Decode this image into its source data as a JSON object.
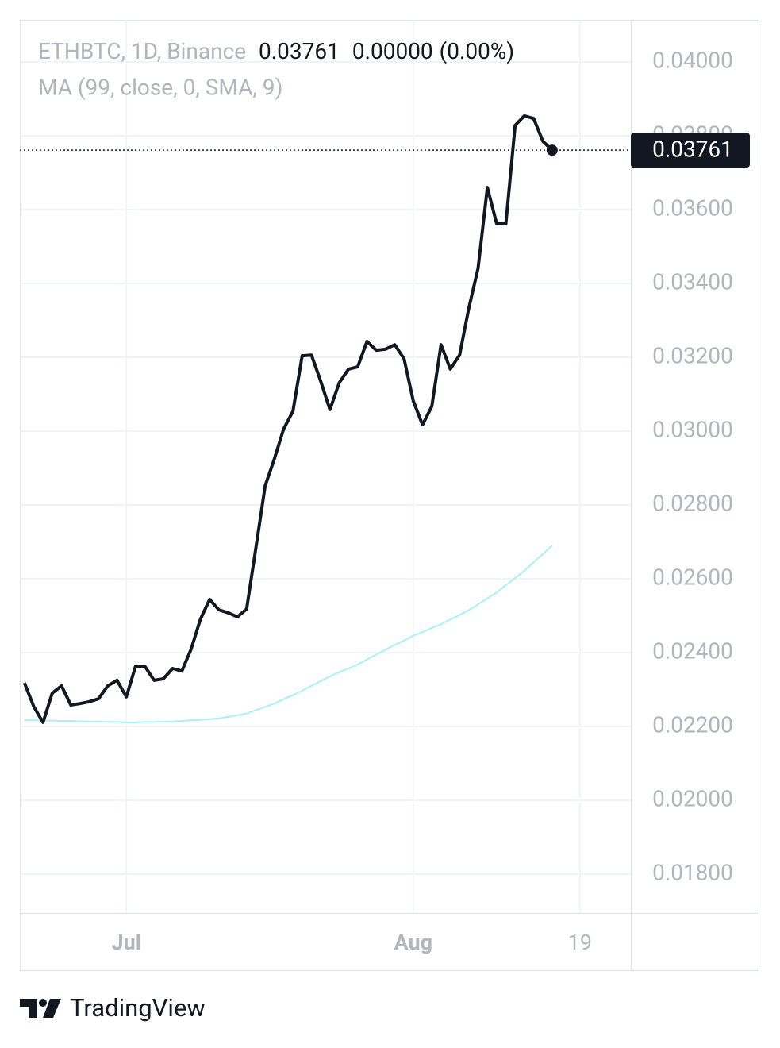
{
  "chart_data": {
    "type": "line",
    "categories": [
      null,
      null,
      null,
      null,
      null,
      null,
      null,
      null,
      null,
      null,
      null,
      "Jul",
      null,
      null,
      null,
      null,
      null,
      null,
      null,
      null,
      null,
      null,
      null,
      null,
      null,
      null,
      null,
      null,
      null,
      null,
      null,
      null,
      null,
      null,
      null,
      null,
      null,
      null,
      null,
      null,
      null,
      null,
      "Aug",
      null,
      null,
      null,
      null,
      null,
      null,
      null,
      null,
      null,
      null,
      null,
      null,
      null,
      null,
      null,
      null,
      null,
      "19",
      null,
      null,
      null,
      null,
      null
    ],
    "series": [
      {
        "name": "ETHBTC, 1D, Binance",
        "color": "#131722",
        "values": [
          0.02318,
          0.02254,
          0.02211,
          0.0229,
          0.0231,
          0.02258,
          0.02262,
          0.02267,
          0.02275,
          0.0231,
          0.02325,
          0.0228,
          0.02363,
          0.02363,
          0.02325,
          0.02329,
          0.02357,
          0.0235,
          0.02409,
          0.0249,
          0.02544,
          0.02516,
          0.02508,
          0.02497,
          0.02518,
          0.02684,
          0.02852,
          0.02925,
          0.03006,
          0.03054,
          0.03204,
          0.03206,
          0.03135,
          0.03058,
          0.03131,
          0.03168,
          0.03174,
          0.03243,
          0.03219,
          0.03222,
          0.03234,
          0.03196,
          0.03082,
          0.03017,
          0.03067,
          0.03234,
          0.03168,
          0.03206,
          0.03333,
          0.03441,
          0.0366,
          0.03563,
          0.03561,
          0.03828,
          0.03854,
          0.03847,
          0.03785,
          0.03761,
          null,
          null,
          null,
          null,
          null,
          null,
          null,
          null
        ]
      },
      {
        "name": "MA (99, close, 0, SMA, 9)",
        "color": "#a8f2f5",
        "values": [
          0.02217,
          0.02217,
          0.02216,
          0.02216,
          0.02215,
          0.02215,
          0.02214,
          0.02213,
          0.02213,
          0.02212,
          0.02212,
          0.02211,
          0.02211,
          0.02212,
          0.02212,
          0.02213,
          0.02213,
          0.02215,
          0.02217,
          0.02218,
          0.0222,
          0.02222,
          0.02226,
          0.02231,
          0.02235,
          0.02244,
          0.02253,
          0.02262,
          0.02274,
          0.02285,
          0.02297,
          0.0231,
          0.02323,
          0.02336,
          0.02347,
          0.02357,
          0.02368,
          0.02381,
          0.02395,
          0.02408,
          0.02421,
          0.02433,
          0.02446,
          0.02456,
          0.02467,
          0.02477,
          0.0249,
          0.02502,
          0.02515,
          0.02531,
          0.02547,
          0.02563,
          0.02583,
          0.02602,
          0.02622,
          0.02645,
          0.02667,
          0.0269,
          null,
          null,
          null,
          null,
          null,
          null,
          null,
          null
        ]
      }
    ],
    "change": {
      "value": 0,
      "label": "0.00000"
    },
    "change_percent": {
      "value": 0,
      "label": "(0.00%)"
    },
    "ylim": [
      0.016946,
      0.04114
    ],
    "yticks": [
      {
        "value": 0.018,
        "label": "0.01800"
      },
      {
        "value": 0.02,
        "label": "0.02000"
      },
      {
        "value": 0.022,
        "label": "0.02200"
      },
      {
        "value": 0.024,
        "label": "0.02400"
      },
      {
        "value": 0.026,
        "label": "0.02600"
      },
      {
        "value": 0.028,
        "label": "0.02800"
      },
      {
        "value": 0.03,
        "label": "0.03000"
      },
      {
        "value": 0.032,
        "label": "0.03200"
      },
      {
        "value": 0.034,
        "label": "0.03400"
      },
      {
        "value": 0.036,
        "label": "0.03600"
      },
      {
        "value": 0.038,
        "label": "0.03800"
      },
      {
        "value": 0.04,
        "label": "0.04000"
      }
    ],
    "grid": true
  },
  "brand": "TradingView"
}
